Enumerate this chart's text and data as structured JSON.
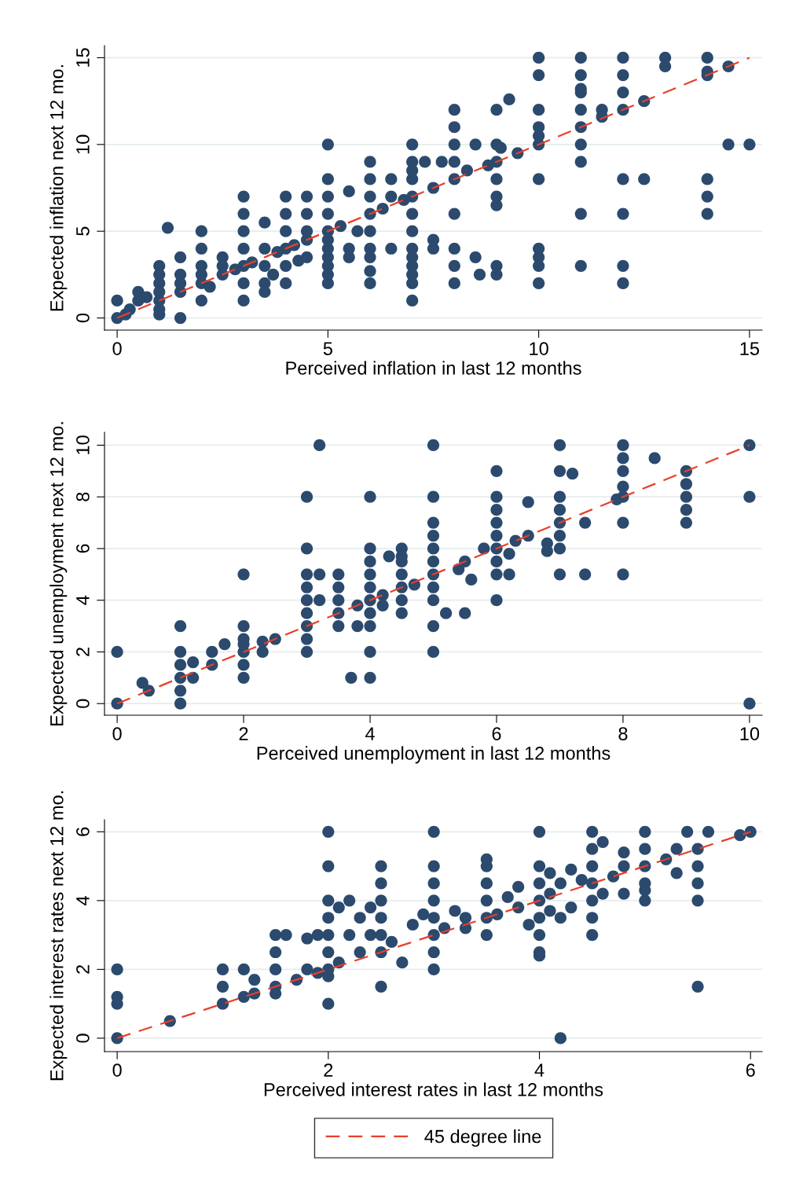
{
  "chart_data": [
    {
      "type": "scatter",
      "xlabel": "Perceived inflation in last 12 months",
      "ylabel": "Expected inflation next 12 mo.",
      "xlim": [
        -0.3,
        15.3
      ],
      "ylim": [
        -0.7,
        15.7
      ],
      "xticks": [
        0,
        5,
        10,
        15
      ],
      "yticks": [
        0,
        5,
        10,
        15
      ],
      "grid": "y",
      "marker": "circle",
      "legend": false,
      "series": [
        {
          "color": "#2b4a6e",
          "x": [
            10,
            10,
            10,
            10,
            10,
            10,
            10,
            10,
            10,
            10,
            10,
            11,
            11,
            11,
            11,
            11,
            11,
            11,
            11,
            11,
            11,
            12,
            12,
            12,
            12,
            12,
            12,
            12,
            12,
            13,
            13,
            14,
            14,
            14,
            14,
            14,
            14,
            14.5,
            14.5,
            15,
            11.5,
            11.5,
            12.5,
            12.5,
            9.5,
            9.3,
            9,
            9,
            9.1,
            9,
            9,
            9,
            9,
            9,
            9,
            8.5,
            8.5,
            8.6,
            8,
            8,
            8,
            8,
            8,
            8,
            8,
            8,
            8,
            7.7,
            7.5,
            7,
            7,
            7,
            7,
            7,
            7,
            7,
            7,
            7,
            7,
            7,
            7,
            7,
            7.3,
            7.5,
            7.5,
            6,
            6,
            6,
            6,
            6,
            6,
            6,
            6,
            6,
            6.5,
            6.5,
            6.5,
            5,
            5,
            5,
            5,
            5,
            5,
            5,
            5,
            5,
            5,
            5,
            5.5,
            5.5,
            5.5,
            5.7,
            4,
            4,
            4,
            4,
            4,
            4,
            4.5,
            4.5,
            4.5,
            4.5,
            3,
            3,
            3,
            3,
            3,
            3,
            3,
            3.5,
            3.5,
            3.5,
            3.5,
            3.5,
            2,
            2,
            2,
            2,
            2,
            2,
            2.5,
            2.5,
            2.5,
            1,
            1,
            1,
            1,
            1,
            1,
            1,
            1.5,
            1.5,
            1.5,
            1.5,
            1.5,
            1.2,
            0.5,
            0.5,
            0.3,
            0,
            0,
            0.2,
            0.7,
            6.8,
            4.2,
            3.8,
            5.3,
            8.3,
            8.8,
            3.2,
            2.8,
            4.5,
            6.3,
            3.7,
            4.3,
            2.2
          ],
          "values": [
            15,
            14,
            12,
            11,
            10.5,
            10,
            8,
            4,
            3.5,
            3,
            2,
            15,
            14,
            13.2,
            13,
            12,
            11,
            10,
            9,
            6,
            3,
            15,
            14,
            13,
            12,
            8,
            6,
            3,
            2,
            15,
            14.5,
            15,
            14.2,
            14,
            8,
            7,
            6,
            14.5,
            10,
            10,
            12,
            11.6,
            12.5,
            8,
            9.5,
            12.6,
            12,
            10,
            9.8,
            9,
            8,
            7,
            6.5,
            3,
            2.5,
            10,
            3.5,
            2.5,
            12,
            11,
            10,
            9,
            8,
            6,
            4,
            3,
            2,
            9,
            7.5,
            10,
            9,
            8.5,
            8,
            7,
            6,
            5,
            4,
            3.5,
            3,
            2.5,
            2,
            1,
            9,
            4.5,
            4,
            9,
            8,
            7,
            6,
            5,
            4,
            3.5,
            2.7,
            2,
            8,
            7,
            4,
            10,
            8,
            7,
            6,
            5,
            4.5,
            4,
            3.5,
            3,
            2.5,
            2,
            7.3,
            4,
            3.5,
            5,
            7,
            6,
            5,
            4,
            3,
            2,
            7,
            6,
            5,
            3.5,
            7,
            6,
            5,
            4,
            3,
            2,
            1,
            5.5,
            4,
            3,
            2,
            1.5,
            5,
            4,
            3,
            2.5,
            2,
            1,
            3.5,
            3,
            2.5,
            3,
            2.5,
            2,
            1.5,
            1,
            0.5,
            0.2,
            3.5,
            2.5,
            2,
            1.5,
            0,
            5.2,
            1.5,
            1,
            0.5,
            1,
            0,
            0.2,
            1.2,
            6.8,
            4.2,
            3.8,
            5.3,
            8.5,
            8.8,
            3.2,
            2.8,
            4.5,
            6.3,
            2.5,
            3.3,
            1.8
          ]
        },
        {
          "type": "line",
          "color": "#e8402a",
          "line_style": "dashed",
          "marker": "none",
          "x": [
            0,
            15
          ],
          "values": [
            0,
            15
          ]
        }
      ]
    },
    {
      "type": "scatter",
      "xlabel": "Perceived unemployment in last 12 months",
      "ylabel": "Expected unemployment next 12 mo.",
      "xlim": [
        -0.2,
        10.2
      ],
      "ylim": [
        -0.45,
        10.5
      ],
      "xticks": [
        0,
        2,
        4,
        6,
        8,
        10
      ],
      "yticks": [
        0,
        2,
        4,
        6,
        8,
        10
      ],
      "grid": "y",
      "marker": "circle",
      "legend": false,
      "series": [
        {
          "color": "#2b4a6e",
          "x": [
            0,
            0,
            0.4,
            0.5,
            1,
            1,
            1,
            1,
            1,
            1,
            1.2,
            1.2,
            1.5,
            1.5,
            1.7,
            2,
            2,
            2,
            2,
            2,
            2,
            2,
            2.3,
            2.3,
            2.5,
            3,
            3,
            3,
            3,
            3,
            3,
            3,
            3,
            3,
            3.2,
            3.2,
            3.2,
            3.5,
            3.5,
            3.5,
            3.5,
            3.5,
            3.7,
            4,
            4,
            4,
            4,
            4,
            4,
            4,
            4,
            4,
            4,
            3.8,
            4.2,
            4.5,
            4.5,
            4.5,
            4.5,
            4.5,
            4.5,
            4.3,
            4.5,
            4.7,
            5,
            5,
            5,
            5,
            5,
            5,
            5,
            5,
            5,
            5,
            5,
            5.2,
            5.4,
            5.5,
            5.6,
            5.5,
            5.8,
            6,
            6,
            6,
            6,
            6,
            6,
            6,
            6,
            6,
            6.2,
            6.2,
            6.5,
            6.5,
            6.3,
            7,
            7,
            7,
            7,
            7,
            7,
            7,
            7,
            6.8,
            7.2,
            7.4,
            7.4,
            8,
            8,
            8,
            8,
            8,
            8,
            8,
            7.9,
            8.5,
            9,
            9,
            9,
            9,
            9,
            10,
            10,
            10,
            6.8,
            3.8,
            4.2
          ],
          "values": [
            0,
            2,
            0.8,
            0.5,
            0,
            0.5,
            1,
            1.5,
            2,
            3,
            1,
            1.6,
            1.5,
            2,
            2.3,
            1,
            1.5,
            2,
            2.3,
            2.5,
            3,
            5,
            2,
            2.4,
            2.5,
            2,
            2.5,
            3,
            3.5,
            4,
            4.5,
            5,
            6,
            8,
            10,
            5,
            4,
            3,
            3.5,
            4,
            4.5,
            5,
            1,
            1,
            2,
            3,
            3.5,
            4,
            4.5,
            5,
            5.5,
            6,
            8,
            3.8,
            4.2,
            3.5,
            4,
            4.5,
            5,
            5.5,
            6,
            5.7,
            5.7,
            4.6,
            2,
            3,
            4,
            4.5,
            5,
            5.5,
            6,
            6.5,
            7,
            8,
            10,
            3.5,
            5.2,
            5.5,
            4.8,
            3.5,
            6,
            4,
            5,
            5.5,
            6,
            6.5,
            7,
            7.5,
            8,
            9,
            5,
            5.8,
            6.5,
            7.8,
            6.3,
            5,
            6,
            6.5,
            7,
            7.5,
            8,
            9,
            10,
            5.9,
            8.9,
            7,
            5,
            5,
            7,
            8,
            8.4,
            9,
            9.5,
            10,
            7.9,
            9.5,
            7,
            7.5,
            8,
            8.5,
            9,
            10,
            8,
            0,
            6.2,
            3,
            3.8
          ]
        },
        {
          "type": "line",
          "color": "#e8402a",
          "line_style": "dashed",
          "marker": "none",
          "x": [
            0,
            10
          ],
          "values": [
            0,
            10
          ]
        }
      ]
    },
    {
      "type": "scatter",
      "xlabel": "Perceived interest rates in last 12 months",
      "ylabel": "Expected interest rates next 12 mo.",
      "xlim": [
        -0.12,
        6.11
      ],
      "ylim": [
        -0.39,
        6.35
      ],
      "xticks": [
        0,
        2,
        4,
        6
      ],
      "yticks": [
        0,
        2,
        4,
        6
      ],
      "grid": "y",
      "marker": "circle",
      "legend": "bottom",
      "series": [
        {
          "color": "#2b4a6e",
          "x": [
            0,
            0,
            0,
            0,
            0.5,
            1,
            1,
            1,
            1.2,
            1.2,
            1.3,
            1.3,
            1.5,
            1.5,
            1.5,
            1.5,
            1.5,
            1.6,
            1.7,
            1.8,
            1.9,
            2,
            2,
            2,
            2,
            2,
            2,
            2,
            2,
            2,
            1.8,
            1.9,
            2.1,
            2.1,
            2.2,
            2.2,
            2.3,
            2.3,
            2.4,
            2.4,
            2.5,
            2.5,
            2.5,
            2.5,
            2.5,
            2.5,
            2.5,
            2.6,
            2.7,
            2.8,
            2.9,
            3,
            3,
            3,
            3,
            3,
            3,
            3,
            3,
            3.1,
            3.2,
            3.3,
            3.5,
            3.5,
            3.5,
            3.5,
            3.5,
            3.5,
            3.6,
            3.7,
            3.8,
            3.9,
            4,
            4,
            4,
            4,
            4,
            4,
            4,
            4,
            4.1,
            4.1,
            4.2,
            4.2,
            4.2,
            4.3,
            4.3,
            4.4,
            4.5,
            4.5,
            4.5,
            4.5,
            4.5,
            4.5,
            4.5,
            4.6,
            4.7,
            4.8,
            4.8,
            4.8,
            5,
            5,
            5,
            5,
            5,
            5,
            5.2,
            5.3,
            5.3,
            5.4,
            5.5,
            5.5,
            5.5,
            5.5,
            5.5,
            5.6,
            5.9,
            6,
            3.3,
            4.6,
            3.8,
            4.1
          ],
          "values": [
            0,
            1,
            1.2,
            2,
            0.5,
            1,
            1.5,
            2,
            1.2,
            2,
            1.3,
            1.7,
            1.3,
            1.5,
            2,
            2.5,
            3,
            3,
            1.7,
            2,
            1.9,
            1,
            1.8,
            2,
            2.5,
            3,
            3.5,
            4,
            5,
            6,
            2.9,
            3,
            2.2,
            3.8,
            3,
            4,
            2.5,
            3.5,
            3.8,
            3,
            1.5,
            2.5,
            3,
            3.5,
            4,
            4.5,
            5,
            2.8,
            2.2,
            3.3,
            3.6,
            2,
            2.5,
            3,
            3.5,
            4,
            4.5,
            5,
            6,
            3.2,
            3.7,
            3.2,
            3,
            3.5,
            4,
            4.5,
            5.2,
            5,
            3.6,
            4.1,
            3.8,
            3.3,
            2.4,
            2.5,
            3,
            3.5,
            4,
            4.5,
            5,
            6,
            4.2,
            4.8,
            0,
            3.5,
            4.5,
            3.8,
            4.9,
            4.6,
            3,
            3.5,
            4,
            4.5,
            5,
            5.5,
            6,
            5.7,
            4.7,
            4.2,
            5,
            5.4,
            4,
            4.5,
            5,
            5.5,
            6,
            4.3,
            5.2,
            5.5,
            4.8,
            6,
            1.5,
            4,
            4.5,
            5,
            5.5,
            6,
            5.9,
            6,
            3.5,
            4.2,
            4.4,
            3.7
          ]
        },
        {
          "type": "line",
          "name": "45 degree line",
          "color": "#e8402a",
          "line_style": "dashed",
          "marker": "none",
          "x": [
            0,
            6
          ],
          "values": [
            0,
            6
          ]
        }
      ]
    }
  ]
}
